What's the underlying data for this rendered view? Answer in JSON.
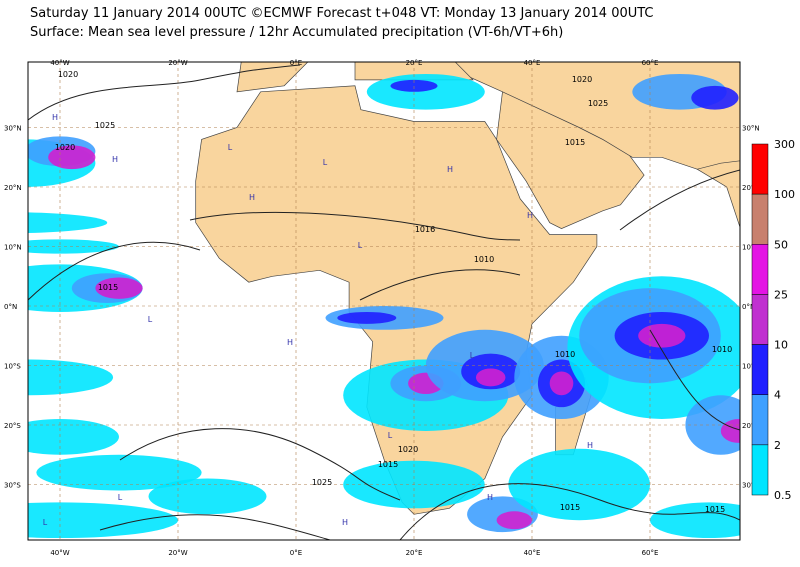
{
  "header": {
    "title": "Saturday 11 January 2014 00UTC ©ECMWF Forecast t+048 VT: Monday 13 January 2014 00UTC",
    "subtitle": "Surface: Mean sea level pressure / 12hr Accumulated precipitation (VT-6h/VT+6h)"
  },
  "map": {
    "longitude_labels": [
      "40°W",
      "20°W",
      "0°E",
      "20°E",
      "40°E",
      "60°E"
    ],
    "latitude_labels": [
      "30°N",
      "20°N",
      "10°N",
      "0°N",
      "10°S",
      "20°S",
      "30°S"
    ],
    "isobar_labels": [
      "1020",
      "1025",
      "1020",
      "1015",
      "1016",
      "1010",
      "1015",
      "1010",
      "1020",
      "1025",
      "1015",
      "1010",
      "1020",
      "1025",
      "1015",
      "1015"
    ],
    "pressure_centres": [
      "H",
      "H",
      "L",
      "L",
      "H",
      "L",
      "L",
      "H",
      "L",
      "H",
      "L",
      "H",
      "L",
      "H",
      "H",
      "L",
      "H"
    ]
  },
  "colorbar": {
    "labels": [
      "300",
      "100",
      "50",
      "25",
      "10",
      "4",
      "2",
      "0.5"
    ]
  }
}
